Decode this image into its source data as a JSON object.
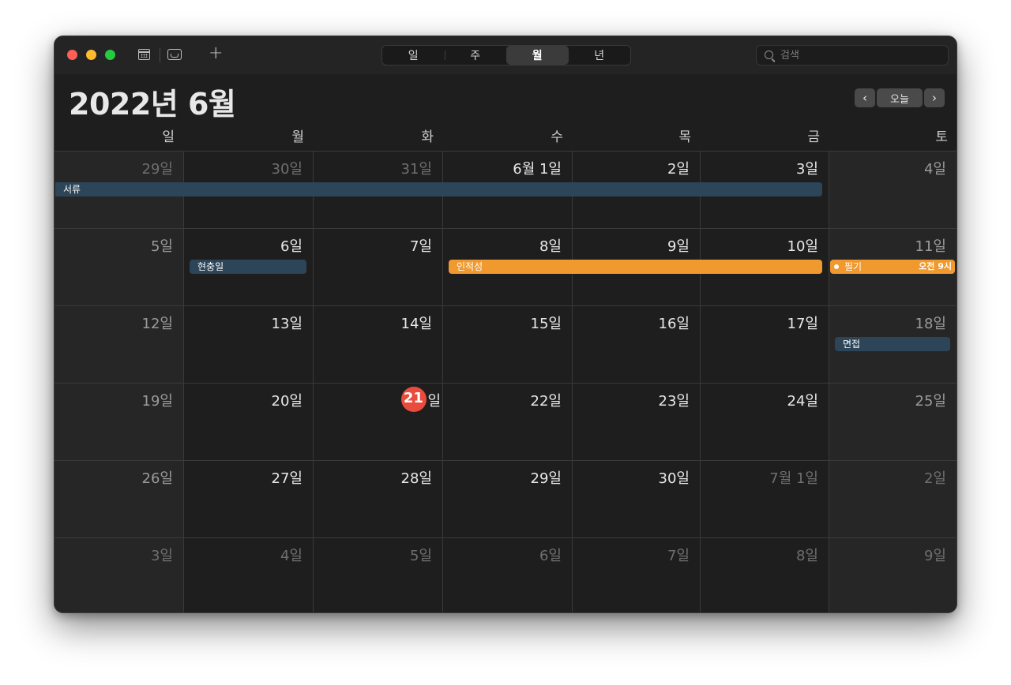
{
  "toolbar": {
    "views": [
      "일",
      "주",
      "월",
      "년"
    ],
    "active_view": "월",
    "search_placeholder": "검색"
  },
  "header": {
    "title": "2022년 6월",
    "today_label": "오늘"
  },
  "weekdays": [
    "일",
    "월",
    "화",
    "수",
    "목",
    "금",
    "토"
  ],
  "weeks": [
    [
      {
        "label": "29일",
        "other": true
      },
      {
        "label": "30일",
        "other": true
      },
      {
        "label": "31일",
        "other": true
      },
      {
        "label": "6월 1일"
      },
      {
        "label": "2일"
      },
      {
        "label": "3일"
      },
      {
        "label": "4일"
      }
    ],
    [
      {
        "label": "5일"
      },
      {
        "label": "6일"
      },
      {
        "label": "7일"
      },
      {
        "label": "8일"
      },
      {
        "label": "9일"
      },
      {
        "label": "10일"
      },
      {
        "label": "11일"
      }
    ],
    [
      {
        "label": "12일"
      },
      {
        "label": "13일"
      },
      {
        "label": "14일"
      },
      {
        "label": "15일"
      },
      {
        "label": "16일"
      },
      {
        "label": "17일"
      },
      {
        "label": "18일"
      }
    ],
    [
      {
        "label": "19일"
      },
      {
        "label": "20일"
      },
      {
        "label": "21일",
        "today": true
      },
      {
        "label": "22일"
      },
      {
        "label": "23일"
      },
      {
        "label": "24일"
      },
      {
        "label": "25일"
      }
    ],
    [
      {
        "label": "26일"
      },
      {
        "label": "27일"
      },
      {
        "label": "28일"
      },
      {
        "label": "29일"
      },
      {
        "label": "30일"
      },
      {
        "label": "7월 1일",
        "other": true
      },
      {
        "label": "2일",
        "other": true
      }
    ],
    [
      {
        "label": "3일",
        "other": true
      },
      {
        "label": "4일",
        "other": true
      },
      {
        "label": "5일",
        "other": true
      },
      {
        "label": "6일",
        "other": true
      },
      {
        "label": "7일",
        "other": true
      },
      {
        "label": "8일",
        "other": true
      },
      {
        "label": "9일",
        "other": true
      }
    ]
  ],
  "today": {
    "number": "21",
    "suffix": "일"
  },
  "events": [
    {
      "title": "서류",
      "week": 0,
      "start": 0,
      "end": 5,
      "color": "blue"
    },
    {
      "title": "현충일",
      "week": 1,
      "start": 1,
      "end": 1,
      "color": "blue"
    },
    {
      "title": "인적성",
      "week": 1,
      "start": 3,
      "end": 5,
      "color": "orange"
    },
    {
      "title": "필기",
      "week": 1,
      "start": 6,
      "end": 6,
      "color": "orange",
      "time": "오전 9시"
    },
    {
      "title": "면접",
      "week": 2,
      "start": 6,
      "end": 6,
      "color": "blue"
    }
  ],
  "colors": {
    "blue": "#2c4558",
    "orange": "#f0992e",
    "today": "#e94b3c"
  }
}
